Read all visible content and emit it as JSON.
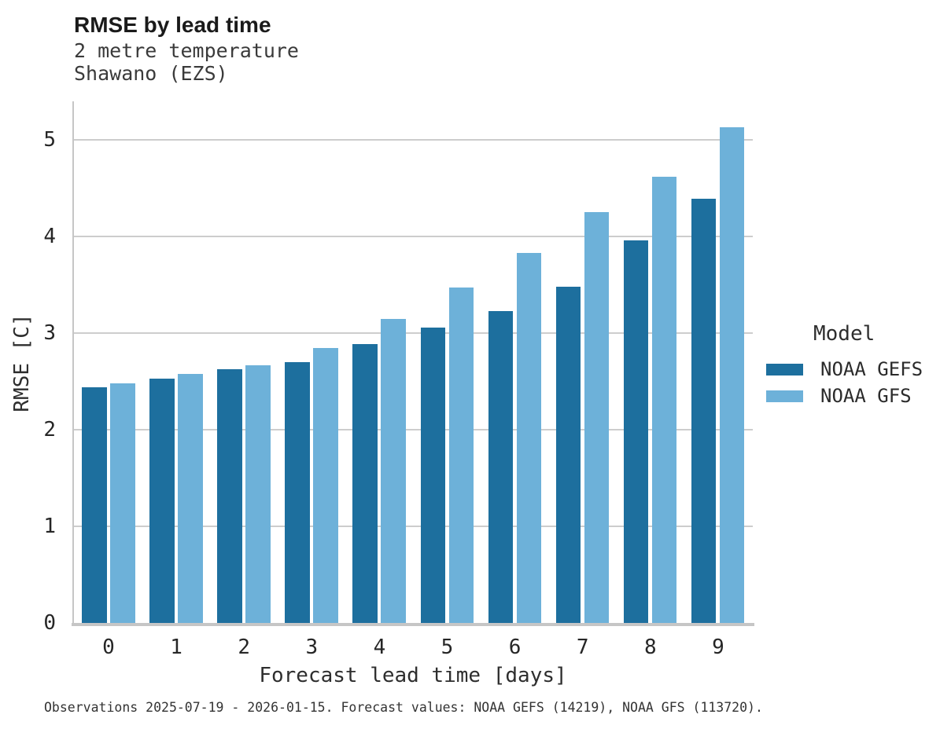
{
  "chart_data": {
    "type": "bar",
    "title": "RMSE by lead time",
    "subtitle": [
      "2 metre temperature",
      "Shawano (EZS)"
    ],
    "categories": [
      "0",
      "1",
      "2",
      "3",
      "4",
      "5",
      "6",
      "7",
      "8",
      "9"
    ],
    "series": [
      {
        "name": "NOAA GEFS",
        "color": "#1d6f9e",
        "values": [
          2.44,
          2.53,
          2.63,
          2.7,
          2.89,
          3.06,
          3.23,
          3.48,
          3.96,
          4.39
        ]
      },
      {
        "name": "NOAA GFS",
        "color": "#6db1d9",
        "values": [
          2.48,
          2.58,
          2.67,
          2.85,
          3.15,
          3.47,
          3.83,
          4.25,
          4.62,
          5.13
        ]
      }
    ],
    "xlabel": "Forecast lead time [days]",
    "ylabel": "RMSE [C]",
    "ylim": [
      0,
      5.4
    ],
    "yticks": [
      0,
      1,
      2,
      3,
      4,
      5
    ],
    "grid": true,
    "legend_title": "Model",
    "legend_position": "right",
    "colors": {
      "gridline": "#cdcdcd",
      "axis": "#c6c6c6"
    }
  },
  "caption": "Observations 2025-07-19 - 2026-01-15. Forecast values: NOAA GEFS (14219), NOAA GFS (113720)."
}
